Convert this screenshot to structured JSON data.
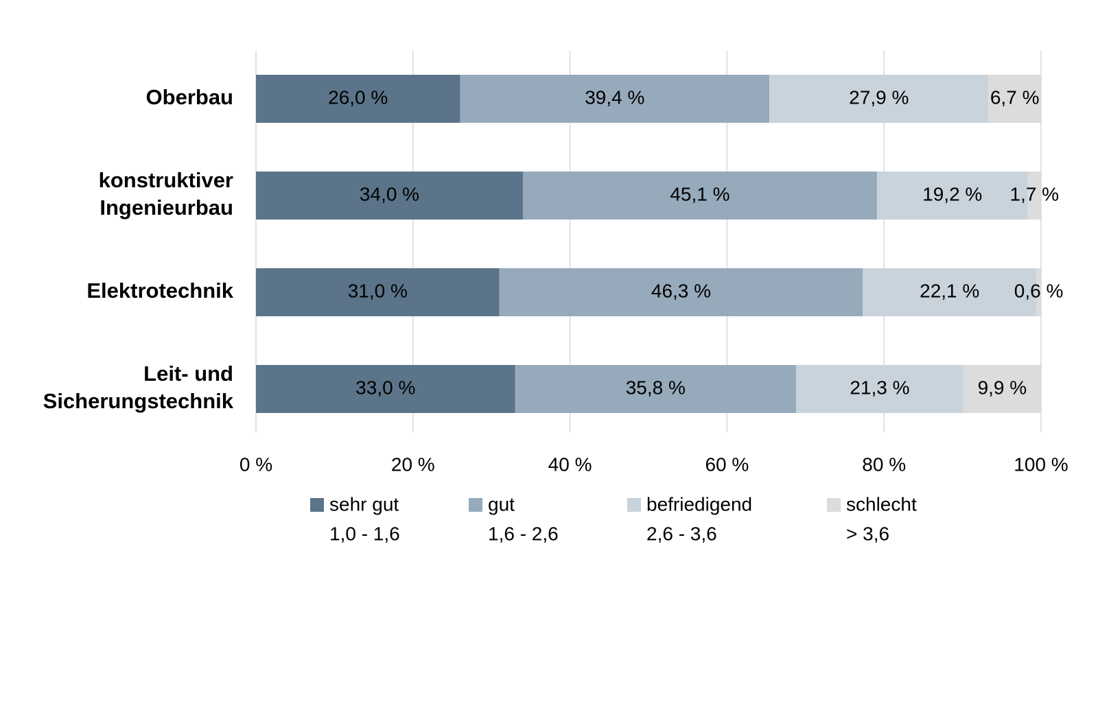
{
  "chart_data": {
    "type": "stacked-bar-horizontal",
    "categories": [
      "Oberbau",
      "konstruktiver\nIngenieurbau",
      "Elektrotechnik",
      "Leit- und\nSicherungstechnik"
    ],
    "series": [
      {
        "name": "sehr gut",
        "range": "1,0 - 1,6",
        "color": "#5b7489",
        "label_color": "#ffffff",
        "values": [
          26.0,
          34.0,
          31.0,
          33.0
        ],
        "value_labels": [
          "26,0 %",
          "34,0 %",
          "31,0 %",
          "33,0 %"
        ]
      },
      {
        "name": "gut",
        "range": "1,6 - 2,6",
        "color": "#96aabb",
        "label_color": "#000000",
        "values": [
          39.4,
          45.1,
          46.3,
          35.8
        ],
        "value_labels": [
          "39,4 %",
          "45,1 %",
          "46,3 %",
          "35,8 %"
        ]
      },
      {
        "name": "befriedigend",
        "range": "2,6 - 3,6",
        "color": "#c9d3dc",
        "label_color": "#000000",
        "values": [
          27.9,
          19.2,
          22.1,
          21.3
        ],
        "value_labels": [
          "27,9 %",
          "19,2 %",
          "22,1 %",
          "21,3 %"
        ]
      },
      {
        "name": "schlecht",
        "range": "> 3,6",
        "color": "#dcdcdc",
        "label_color": "#000000",
        "values": [
          6.7,
          1.7,
          0.6,
          9.9
        ],
        "value_labels": [
          "6,7 %",
          "1,7 %",
          "0,6 %",
          "9,9 %"
        ]
      }
    ],
    "xlim": [
      0,
      100
    ],
    "xticks": [
      {
        "value": 0,
        "label": "0 %"
      },
      {
        "value": 20,
        "label": "20 %"
      },
      {
        "value": 40,
        "label": "40 %"
      },
      {
        "value": 60,
        "label": "60 %"
      },
      {
        "value": 80,
        "label": "80 %"
      },
      {
        "value": 100,
        "label": "100 %"
      }
    ],
    "grid": true
  }
}
